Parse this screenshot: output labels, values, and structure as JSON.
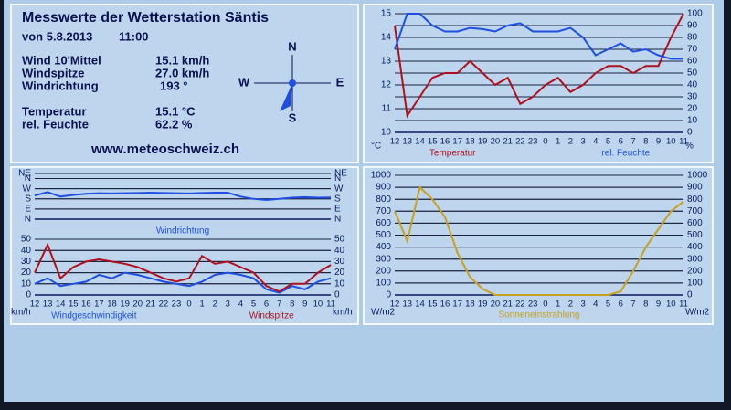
{
  "panel": {
    "title": "Messwerte der Wetterstation Säntis",
    "date": "von 5.8.2013",
    "time": "11:00",
    "rows": [
      [
        "Wind 10'Mittel",
        "15.1 km/h"
      ],
      [
        "Windspitze",
        "27.0 km/h"
      ],
      [
        "Windrichtung",
        "193 °"
      ],
      [
        "Temperatur",
        "15.1 °C"
      ],
      [
        "rel. Feuchte",
        "62.2 %"
      ]
    ],
    "url": "www.meteoschweiz.ch",
    "compass": [
      "N",
      "E",
      "S",
      "W"
    ]
  },
  "chart_data": [
    {
      "type": "line",
      "categories": [
        "12",
        "13",
        "14",
        "15",
        "16",
        "17",
        "18",
        "19",
        "20",
        "21",
        "22",
        "23",
        "0",
        "1",
        "2",
        "3",
        "4",
        "5",
        "6",
        "7",
        "8",
        "9",
        "10",
        "11"
      ],
      "y_label": "°C",
      "y2_label": "%",
      "ylim": [
        10,
        15
      ],
      "yticks": [
        10,
        11,
        12,
        13,
        14,
        15
      ],
      "y2lim": [
        0,
        100
      ],
      "y2ticks": [
        0,
        10,
        20,
        30,
        40,
        50,
        60,
        70,
        80,
        90,
        100
      ],
      "grid": true,
      "series": [
        {
          "name": "Temperatur",
          "color": "#b0101e",
          "values": [
            14.5,
            10.7,
            11.5,
            12.3,
            12.5,
            12.5,
            13,
            12.5,
            12,
            12.3,
            11.2,
            11.5,
            12,
            12.3,
            11.7,
            12,
            12.5,
            12.8,
            12.8,
            12.5,
            12.8,
            12.8,
            14,
            15
          ]
        },
        {
          "name": "rel. Feuchte",
          "color": "#1f4fe0",
          "axis": "y2",
          "values": [
            70,
            100,
            100,
            90,
            85,
            85,
            88,
            87,
            85,
            90,
            92,
            85,
            85,
            85,
            88,
            80,
            65,
            70,
            75,
            68,
            70,
            65,
            62,
            62
          ]
        }
      ]
    },
    {
      "type": "line",
      "ylim": [
        0,
        405
      ],
      "yticks": [
        {
          "value": 0,
          "label": "N"
        },
        {
          "value": 90,
          "label": "E"
        },
        {
          "value": 180,
          "label": "S"
        },
        {
          "value": 270,
          "label": "W"
        },
        {
          "value": 360,
          "label": "N"
        },
        {
          "value": 405,
          "label": "NE"
        }
      ],
      "y2lim": [
        0,
        405
      ],
      "y2ticks": [
        {
          "value": 0,
          "label": "N"
        },
        {
          "value": 90,
          "label": "E"
        },
        {
          "value": 180,
          "label": "S"
        },
        {
          "value": 270,
          "label": "W"
        },
        {
          "value": 360,
          "label": "N"
        },
        {
          "value": 405,
          "label": "NE"
        }
      ],
      "grid": true,
      "series": [
        {
          "name": "Windrichtung",
          "color": "#1f4fe0",
          "values": [
            210,
            240,
            200,
            215,
            225,
            230,
            228,
            230,
            232,
            235,
            232,
            230,
            228,
            232,
            235,
            235,
            200,
            180,
            170,
            180,
            190,
            195,
            190,
            193
          ]
        }
      ]
    },
    {
      "type": "line",
      "categories": [
        "12",
        "13",
        "14",
        "15",
        "16",
        "17",
        "18",
        "19",
        "20",
        "21",
        "22",
        "23",
        "0",
        "1",
        "2",
        "3",
        "4",
        "5",
        "6",
        "7",
        "8",
        "9",
        "10",
        "11"
      ],
      "y_label": "km/h",
      "y2_label": "km/h",
      "ylim": [
        0,
        50
      ],
      "yticks": [
        0,
        10,
        20,
        30,
        40,
        50
      ],
      "y2lim": [
        0,
        50
      ],
      "y2ticks": [
        0,
        10,
        20,
        30,
        40,
        50
      ],
      "grid": true,
      "series": [
        {
          "name": "Windgeschwindigkeit",
          "color": "#1f4fe0",
          "values": [
            10,
            15,
            8,
            10,
            12,
            18,
            15,
            20,
            18,
            15,
            12,
            10,
            8,
            12,
            18,
            20,
            18,
            15,
            5,
            2,
            8,
            5,
            12,
            15
          ]
        },
        {
          "name": "Windspitze",
          "color": "#b0101e",
          "values": [
            20,
            45,
            15,
            25,
            30,
            32,
            30,
            28,
            25,
            20,
            15,
            12,
            15,
            35,
            28,
            30,
            25,
            20,
            8,
            3,
            10,
            10,
            20,
            27
          ]
        }
      ]
    },
    {
      "type": "line",
      "categories": [
        "12",
        "13",
        "14",
        "15",
        "16",
        "17",
        "18",
        "19",
        "20",
        "21",
        "22",
        "23",
        "0",
        "1",
        "2",
        "3",
        "4",
        "5",
        "6",
        "7",
        "8",
        "9",
        "10",
        "11"
      ],
      "y_label": "W/m2",
      "y2_label": "W/m2",
      "ylim": [
        0,
        1000
      ],
      "yticks": [
        0,
        100,
        200,
        300,
        400,
        500,
        600,
        700,
        800,
        900,
        1000
      ],
      "y2lim": [
        0,
        1000
      ],
      "y2ticks": [
        0,
        100,
        200,
        300,
        400,
        500,
        600,
        700,
        800,
        900,
        1000
      ],
      "grid": true,
      "series": [
        {
          "name": "Sonneneinstrahlung",
          "color": "#c8a020",
          "values": [
            700,
            450,
            900,
            800,
            650,
            350,
            150,
            50,
            0,
            0,
            0,
            0,
            0,
            0,
            0,
            0,
            0,
            0,
            30,
            200,
            400,
            550,
            700,
            780
          ]
        }
      ]
    }
  ]
}
